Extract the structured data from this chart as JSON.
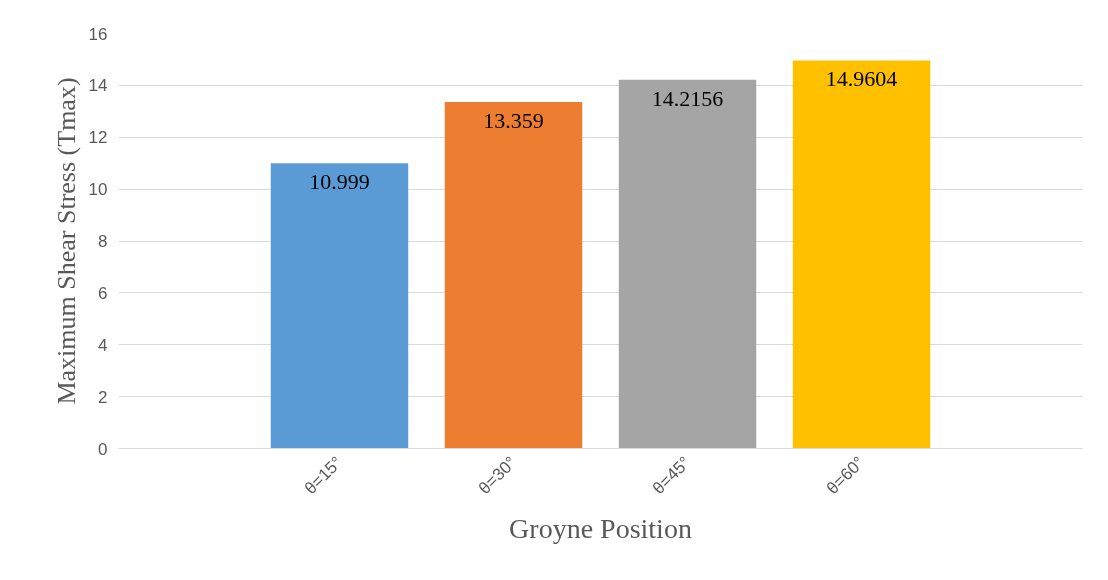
{
  "chart_data": {
    "type": "bar",
    "xlabel": "Groyne Position",
    "ylabel": "Maximum Shear Stress (Tmax)",
    "categories": [
      "θ=15°",
      "θ=30°",
      "θ=45°",
      "θ=60°"
    ],
    "values": [
      10.999,
      13.359,
      14.2156,
      14.9604
    ],
    "colors": [
      "#5b9bd5",
      "#ed7d31",
      "#a5a5a5",
      "#ffc000"
    ],
    "ylim": [
      0,
      16
    ],
    "yticks": [
      0,
      2,
      4,
      6,
      8,
      10,
      12,
      14,
      16
    ],
    "grid": "y",
    "data_labels": true
  }
}
